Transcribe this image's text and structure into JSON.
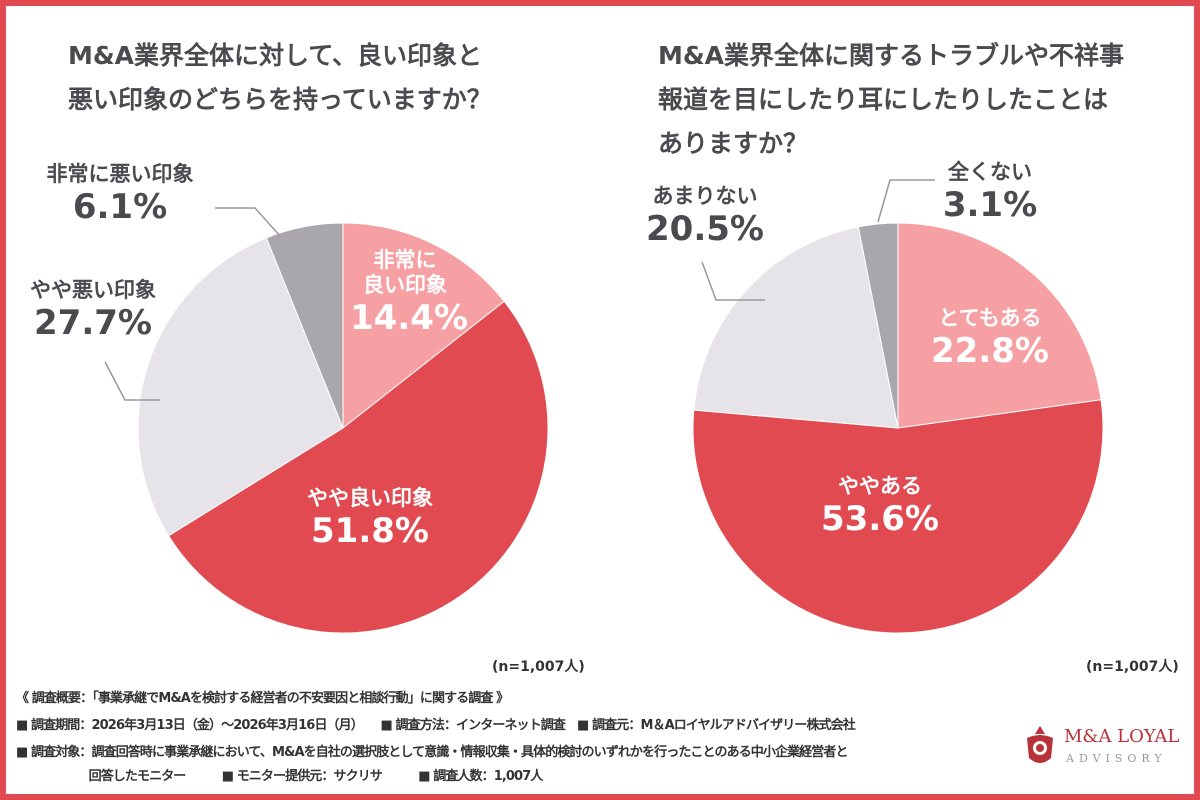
{
  "colors": {
    "border": "#e04a50",
    "pink": "#f6a0a3",
    "red": "#e04a50",
    "light_gray": "#e6e4e8",
    "gray": "#a9a7ad"
  },
  "chart_data": [
    {
      "type": "pie",
      "title": "M&A業界全体に対して、良い印象と\n悪い印象のどちらを持っていますか？",
      "note": "(n=1,007人)",
      "slices": [
        {
          "label": "非常に良い印象",
          "value": 14.4,
          "color": "#f6a0a3"
        },
        {
          "label": "やや良い印象",
          "value": 51.8,
          "color": "#e04a50"
        },
        {
          "label": "やや悪い印象",
          "value": 27.7,
          "color": "#e6e4e8"
        },
        {
          "label": "非常に悪い印象",
          "value": 6.1,
          "color": "#a9a7ad"
        }
      ]
    },
    {
      "type": "pie",
      "title": "M&A業界全体に関するトラブルや不祥事\n報道を目にしたり耳にしたりしたことは\nありますか？",
      "note": "(n=1,007人)",
      "slices": [
        {
          "label": "とてもある",
          "value": 22.8,
          "color": "#f6a0a3"
        },
        {
          "label": "ややある",
          "value": 53.6,
          "color": "#e04a50"
        },
        {
          "label": "あまりない",
          "value": 20.5,
          "color": "#e6e4e8"
        },
        {
          "label": "全くない",
          "value": 3.1,
          "color": "#a9a7ad"
        }
      ]
    }
  ],
  "labels": {
    "l0a": "非常に",
    "l0b": "良い印象",
    "l0v": "14.4%",
    "l1": "やや良い印象",
    "l1v": "51.8%",
    "l2": "やや悪い印象",
    "l2v": "27.7%",
    "l3": "非常に悪い印象",
    "l3v": "6.1%",
    "r0": "とてもある",
    "r0v": "22.8%",
    "r1": "ややある",
    "r1v": "53.6%",
    "r2": "あまりない",
    "r2v": "20.5%",
    "r3": "全くない",
    "r3v": "3.1%"
  },
  "footer": {
    "line1": "《 調査概要：「事業承継でM&Aを検討する経営者の不安要因と相談行動」に関する調査 》",
    "line2": "■ 調査期間：2026年3月13日（金）〜2026年3月16日（月）　　■ 調査方法：インターネット調査　■ 調査元：M＆Aロイヤルアドバイザリー株式会社",
    "line3": "■ 調査対象：調査回答時に事業承継において、M&Aを自社の選択肢として意識・情報収集・具体的検討のいずれかを行ったことのある中小企業経営者と",
    "line4": "　　　　　　回答したモニター　　　■ モニター提供元：サクリサ　　　■ 調査人数：1,007人"
  },
  "logo": {
    "line1": "M&A LOYAL",
    "line2": "ADVISORY"
  }
}
